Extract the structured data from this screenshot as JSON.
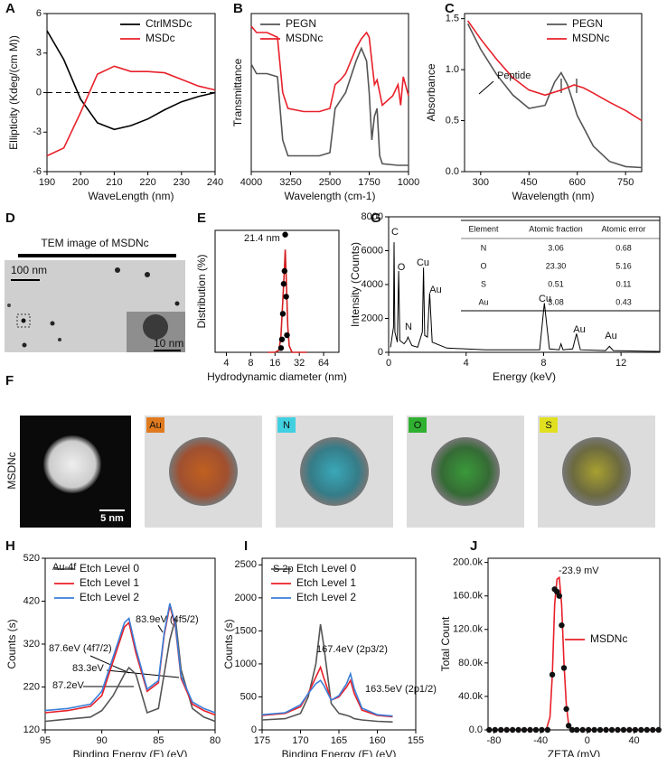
{
  "panel_labels": [
    "A",
    "B",
    "C",
    "D",
    "E",
    "F",
    "G",
    "H",
    "I",
    "J"
  ],
  "tem": {
    "title": "TEM image of MSDNc",
    "scale": "100 nm",
    "inset_scale": "10 nm"
  },
  "mapping": {
    "sample": "MSDNc",
    "scale": "5 nm",
    "elements": [
      "Au",
      "N",
      "O",
      "S"
    ]
  },
  "table": {
    "header": [
      "Element",
      "Atomic fraction",
      "Atomic error"
    ],
    "rows": [
      [
        "N",
        "3.06",
        "0.68"
      ],
      [
        "O",
        "23.30",
        "5.16"
      ],
      [
        "S",
        "0.51",
        "0.11"
      ],
      [
        "Au",
        "3.08",
        "0.43"
      ]
    ]
  },
  "chart_data": [
    {
      "type": "line",
      "xlabel": "WaveLength (nm)",
      "ylabel": "Ellipticity (Kdeg/(cm M))",
      "xlim": [
        190,
        240
      ],
      "ylim": [
        -6,
        6
      ],
      "xticks": [
        190,
        200,
        210,
        220,
        230,
        240
      ],
      "yticks": [
        -6,
        -3,
        0,
        3,
        6
      ],
      "zero_line": true,
      "legend": "upper right",
      "x": [
        190,
        195,
        200,
        205,
        210,
        215,
        220,
        225,
        230,
        235,
        240
      ],
      "series": [
        {
          "name": "CtrlMSDc",
          "color": "#000000",
          "values": [
            4.7,
            2.5,
            -0.5,
            -2.3,
            -2.8,
            -2.5,
            -2.0,
            -1.3,
            -0.7,
            -0.3,
            0
          ]
        },
        {
          "name": "MSDc",
          "color": "#e8202a",
          "values": [
            -4.8,
            -4.2,
            -1.5,
            1.4,
            2.0,
            1.6,
            1.6,
            1.5,
            1.0,
            0.5,
            0.2
          ]
        }
      ]
    },
    {
      "type": "line",
      "xlabel": "Wavelength (cm-1)",
      "ylabel": "Transmittance",
      "xlim": [
        4000,
        1000
      ],
      "ylim": [
        0,
        100
      ],
      "xticks": [
        4000,
        3250,
        2500,
        1750,
        1000
      ],
      "legend": "upper left",
      "series": [
        {
          "name": "PEGN",
          "color": "#555555",
          "x": [
            4000,
            3900,
            3700,
            3500,
            3400,
            3300,
            3000,
            2700,
            2500,
            2400,
            2300,
            2200,
            2100,
            2000,
            1900,
            1800,
            1750,
            1700,
            1650,
            1600,
            1550,
            1500,
            1200,
            1000
          ],
          "values": [
            68,
            62,
            62,
            60,
            20,
            10,
            10,
            10,
            12,
            40,
            45,
            50,
            60,
            70,
            78,
            70,
            50,
            20,
            35,
            40,
            10,
            5,
            4,
            4
          ]
        },
        {
          "name": "MSDNc",
          "color": "#e8202a",
          "x": [
            4000,
            3900,
            3700,
            3500,
            3400,
            3300,
            3000,
            2700,
            2500,
            2400,
            2300,
            2200,
            2100,
            2000,
            1900,
            1800,
            1750,
            1650,
            1600,
            1500,
            1300,
            1200,
            1150,
            1100,
            1000
          ],
          "values": [
            92,
            88,
            88,
            85,
            50,
            40,
            38,
            38,
            40,
            55,
            58,
            62,
            70,
            78,
            84,
            88,
            85,
            55,
            58,
            42,
            48,
            55,
            42,
            60,
            48
          ]
        }
      ]
    },
    {
      "type": "line",
      "xlabel": "Wavelength (nm)",
      "ylabel": "Absorbance",
      "xlim": [
        250,
        800
      ],
      "ylim": [
        0,
        1.55
      ],
      "xticks": [
        300,
        450,
        600,
        750
      ],
      "yticks": [
        {
          "value": 0,
          "label": "0.0"
        },
        {
          "value": 0.5,
          "label": "0.5"
        },
        {
          "value": 1,
          "label": "1.0"
        },
        {
          "value": 1.5,
          "label": "1.5"
        }
      ],
      "legend": "upper right",
      "annotations": [
        "Peptide"
      ],
      "series": [
        {
          "name": "PEGN",
          "color": "#555555",
          "x": [
            260,
            300,
            350,
            400,
            450,
            500,
            530,
            550,
            570,
            600,
            650,
            700,
            750,
            800
          ],
          "values": [
            1.45,
            1.2,
            0.95,
            0.75,
            0.62,
            0.65,
            0.88,
            0.97,
            0.85,
            0.55,
            0.25,
            0.1,
            0.05,
            0.04
          ]
        },
        {
          "name": "MSDNc",
          "color": "#e8202a",
          "x": [
            260,
            300,
            350,
            400,
            450,
            500,
            550,
            590,
            620,
            650,
            700,
            750,
            800
          ],
          "values": [
            1.48,
            1.3,
            1.1,
            0.92,
            0.8,
            0.75,
            0.8,
            0.85,
            0.82,
            0.77,
            0.68,
            0.6,
            0.5
          ]
        }
      ]
    },
    {
      "type": "line",
      "xlabel": "Hydrodynamic diameter (nm)",
      "ylabel": "Distribution (%)",
      "xscale": "log",
      "xlim": [
        2.9,
        99
      ],
      "ylim": [
        0,
        28.5
      ],
      "xticks": [
        4,
        8,
        16,
        32,
        64
      ],
      "annotations": [
        "21.4 nm"
      ],
      "series": [
        {
          "color": "#d42020",
          "x": [
            13,
            16,
            18,
            19,
            20,
            21,
            21.4,
            22,
            23,
            24,
            26,
            40
          ],
          "values": [
            0,
            0,
            0.5,
            4,
            12,
            20,
            24,
            18,
            6,
            1.5,
            0,
            0
          ]
        },
        {
          "color": "#000000",
          "mode": "markers",
          "x": [
            19,
            19.5,
            20,
            20.5,
            21,
            21.4,
            22,
            22.5
          ],
          "values": [
            1,
            3,
            9,
            16,
            19,
            27.5,
            13,
            4
          ]
        }
      ]
    },
    {
      "type": "line",
      "xlabel": "Energy (keV)",
      "ylabel": "Intensity (Counts)",
      "xlim": [
        0,
        14
      ],
      "ylim": [
        0,
        8000
      ],
      "xticks": [
        0,
        4,
        8,
        12
      ],
      "yticks": [
        0,
        2000,
        4000,
        6000,
        8000
      ],
      "annotations": [
        "C",
        "O",
        "N",
        "Cu",
        "Au",
        "Cu",
        "Au",
        "Au"
      ],
      "series": [
        {
          "color": "#000000",
          "x": [
            0.1,
            0.25,
            0.28,
            0.32,
            0.45,
            0.52,
            0.58,
            0.8,
            0.93,
            1.0,
            1.2,
            1.5,
            1.74,
            1.8,
            1.86,
            2.0,
            2.12,
            2.25,
            3,
            5,
            7.8,
            8.04,
            8.3,
            8.8,
            8.9,
            9.0,
            9.5,
            9.7,
            9.9,
            11.2,
            11.4,
            11.6,
            14
          ],
          "values": [
            300,
            1500,
            6500,
            1200,
            600,
            4800,
            700,
            500,
            700,
            900,
            400,
            300,
            1200,
            5000,
            1000,
            900,
            3500,
            600,
            250,
            150,
            150,
            2900,
            200,
            150,
            500,
            150,
            200,
            1100,
            150,
            100,
            350,
            100,
            50
          ]
        }
      ]
    },
    {
      "type": "line",
      "xlabel": "Binding Energy (E) (eV)",
      "ylabel": "Counts (s)",
      "xlim": [
        95,
        80
      ],
      "ylim": [
        120,
        520
      ],
      "xticks": [
        95,
        90,
        85,
        80
      ],
      "yticks": [
        120,
        220,
        320,
        420,
        520
      ],
      "legend": "upper left",
      "annotations": [
        "Au-4f",
        "83.9eV (4f5/2)",
        "87.6eV (4f7/2)",
        "83.3eV",
        "87.2eV"
      ],
      "x": [
        95,
        93,
        91,
        90,
        89,
        88,
        87.6,
        87,
        86,
        85,
        84.5,
        84,
        83.5,
        83,
        82,
        81,
        80
      ],
      "series": [
        {
          "name": "Etch Level 0",
          "color": "#555555",
          "values": [
            140,
            145,
            150,
            165,
            200,
            250,
            265,
            250,
            160,
            170,
            250,
            330,
            380,
            260,
            170,
            150,
            140
          ]
        },
        {
          "name": "Etch Level 1",
          "color": "#e8202a",
          "values": [
            160,
            165,
            175,
            200,
            280,
            360,
            370,
            300,
            210,
            230,
            340,
            410,
            360,
            240,
            180,
            165,
            155
          ]
        },
        {
          "name": "Etch Level 2",
          "color": "#3a7fd9",
          "values": [
            165,
            170,
            180,
            210,
            290,
            370,
            380,
            310,
            215,
            235,
            345,
            415,
            365,
            245,
            185,
            170,
            160
          ]
        }
      ]
    },
    {
      "type": "line",
      "xlabel": "Binding Energy (E) (eV)",
      "ylabel": "Counts (s)",
      "xlim": [
        175,
        155
      ],
      "ylim": [
        0,
        2600
      ],
      "xticks": [
        175,
        170,
        165,
        160,
        155
      ],
      "yticks": [
        0,
        500,
        1000,
        1500,
        2000,
        2500
      ],
      "legend": "upper left",
      "annotations": [
        "S 2p",
        "167.4eV (2p3/2)",
        "163.5eV (2p1/2)"
      ],
      "x": [
        175,
        172,
        170,
        169,
        168,
        167.4,
        167,
        166,
        165,
        164,
        163.5,
        163,
        162,
        160,
        158
      ],
      "series": [
        {
          "name": "Etch Level 0",
          "color": "#555555",
          "values": [
            150,
            170,
            250,
            500,
            1000,
            1600,
            1300,
            400,
            250,
            220,
            200,
            170,
            150,
            130,
            120
          ]
        },
        {
          "name": "Etch Level 1",
          "color": "#e8202a",
          "values": [
            220,
            250,
            350,
            550,
            800,
            950,
            800,
            450,
            500,
            650,
            750,
            550,
            300,
            220,
            200
          ]
        },
        {
          "name": "Etch Level 2",
          "color": "#3a7fd9",
          "values": [
            230,
            260,
            380,
            550,
            700,
            750,
            680,
            450,
            520,
            700,
            850,
            620,
            330,
            230,
            210
          ]
        }
      ]
    },
    {
      "type": "line",
      "xlabel": "ZETA (mV)",
      "ylabel": "Total Count",
      "xlim": [
        -85,
        62
      ],
      "ylim": [
        0,
        205000
      ],
      "xticks": [
        -80,
        -40,
        0,
        40
      ],
      "yticks": [
        {
          "value": 0,
          "label": "0.0"
        },
        {
          "value": 40000,
          "label": "40.0k"
        },
        {
          "value": 80000,
          "label": "80.0k"
        },
        {
          "value": 120000,
          "label": "120.0k"
        },
        {
          "value": 160000,
          "label": "160.0k"
        },
        {
          "value": 200000,
          "label": "200.0k"
        }
      ],
      "legend": "center right",
      "annotations": [
        "-23.9 mV"
      ],
      "series": [
        {
          "name": "MSDNc",
          "color": "#e8202a",
          "x": [
            -85,
            -40,
            -35,
            -32,
            -30,
            -28,
            -26,
            -24,
            -22,
            -20,
            -18,
            -16,
            -14,
            -10,
            0,
            62
          ],
          "values": [
            0,
            0,
            1000,
            15000,
            65000,
            150000,
            180000,
            182000,
            150000,
            80000,
            30000,
            6000,
            1000,
            0,
            0,
            0
          ]
        },
        {
          "color": "#111111",
          "mode": "markers",
          "x": [
            -84,
            -79,
            -74,
            -69,
            -64,
            -59,
            -54,
            -49,
            -44,
            -39,
            -34,
            -30,
            -28,
            -26,
            -24,
            -22,
            -20,
            -18,
            -16,
            -13,
            -9,
            -4,
            1,
            6,
            11,
            16,
            21,
            26,
            31,
            36,
            41,
            46,
            51,
            56,
            61
          ],
          "values": [
            0,
            0,
            0,
            0,
            0,
            0,
            0,
            0,
            0,
            0,
            0,
            66000,
            168000,
            165000,
            160000,
            125000,
            74000,
            25000,
            5000,
            0,
            0,
            0,
            0,
            0,
            0,
            0,
            0,
            0,
            0,
            0,
            0,
            0,
            0,
            0,
            0
          ]
        }
      ]
    }
  ]
}
